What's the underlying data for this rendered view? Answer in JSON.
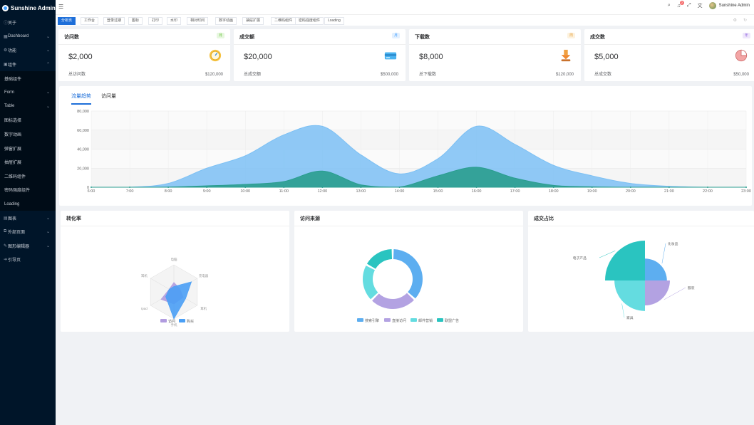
{
  "app": {
    "title": "Sunshine Admin"
  },
  "sidebar": {
    "items": [
      {
        "label": "关于",
        "icon": "info-icon",
        "arrow": ""
      },
      {
        "label": "Dashboard",
        "icon": "dashboard-icon",
        "arrow": "⌄"
      },
      {
        "label": "功能",
        "icon": "function-icon",
        "arrow": "⌄"
      },
      {
        "label": "组件",
        "icon": "component-icon",
        "arrow": "⌃"
      },
      {
        "label": "基础组件",
        "icon": "",
        "arrow": ""
      },
      {
        "label": "Form",
        "icon": "",
        "arrow": "⌄"
      },
      {
        "label": "Table",
        "icon": "",
        "arrow": "⌄"
      },
      {
        "label": "图标选择",
        "icon": "",
        "arrow": ""
      },
      {
        "label": "数字动画",
        "icon": "",
        "arrow": ""
      },
      {
        "label": "弹窗扩展",
        "icon": "",
        "arrow": ""
      },
      {
        "label": "抽屉扩展",
        "icon": "",
        "arrow": ""
      },
      {
        "label": "二维码组件",
        "icon": "",
        "arrow": ""
      },
      {
        "label": "密码强度组件",
        "icon": "",
        "arrow": ""
      },
      {
        "label": "Loading",
        "icon": "",
        "arrow": ""
      },
      {
        "label": "图表",
        "icon": "chart-icon",
        "arrow": "⌄"
      },
      {
        "label": "外部页面",
        "icon": "link-icon",
        "arrow": "⌄"
      },
      {
        "label": "图形编辑器",
        "icon": "editor-icon",
        "arrow": "⌄"
      },
      {
        "label": "引导页",
        "icon": "guide-icon",
        "arrow": ""
      }
    ]
  },
  "header": {
    "user_name": "Sunshine Admin",
    "notify_count": "2"
  },
  "tabs": [
    "分析页",
    "工作台",
    "登录过期",
    "图标",
    "打印",
    "水印",
    "相对时间",
    "数字动画",
    "抽屉扩展",
    "二维码组件",
    "密码强度组件",
    "Loading"
  ],
  "stats": [
    {
      "title": "访问数",
      "tag": "月",
      "tag_color": "#67c23a",
      "tag_bg": "#e7f7df",
      "value": "$2,000",
      "foot_label": "总访问数",
      "foot_value": "$120,000",
      "icon": "clock-icon"
    },
    {
      "title": "成交额",
      "tag": "月",
      "tag_color": "#409eff",
      "tag_bg": "#e3f0fe",
      "value": "$20,000",
      "foot_label": "总成交额",
      "foot_value": "$500,000",
      "icon": "credit-card-icon"
    },
    {
      "title": "下载数",
      "tag": "周",
      "tag_color": "#e6a23c",
      "tag_bg": "#fdf2df",
      "value": "$8,000",
      "foot_label": "总下载数",
      "foot_value": "$120,000",
      "icon": "download-icon"
    },
    {
      "title": "成交数",
      "tag": "年",
      "tag_color": "#9064e0",
      "tag_bg": "#efe7fb",
      "value": "$5,000",
      "foot_label": "总成交数",
      "foot_value": "$50,000",
      "icon": "pie-chart-icon"
    }
  ],
  "trend": {
    "tabs": [
      "流量趋势",
      "访问量"
    ],
    "active_tab": 0
  },
  "panels": {
    "conversion_title": "转化率",
    "source_title": "访问来源",
    "share_title": "成交占比"
  },
  "chart_data": [
    {
      "type": "area",
      "x": [
        "6:00",
        "7:00",
        "8:00",
        "9:00",
        "10:00",
        "11:00",
        "12:00",
        "13:00",
        "14:00",
        "15:00",
        "16:00",
        "17:00",
        "18:00",
        "19:00",
        "20:00",
        "21:00",
        "22:00",
        "23:00"
      ],
      "yticks": [
        "0",
        "20,000",
        "40,000",
        "60,000",
        "80,000"
      ],
      "ylim": [
        0,
        80000
      ],
      "series": [
        {
          "values": [
            0,
            100,
            4000,
            20000,
            33000,
            55000,
            64000,
            34000,
            14000,
            30000,
            64000,
            45000,
            23000,
            12000,
            4000,
            1000,
            0,
            0
          ],
          "color": "#7cc0f4"
        },
        {
          "values": [
            0,
            0,
            200,
            1500,
            3000,
            6000,
            17000,
            2500,
            300,
            12000,
            21000,
            9500,
            2000,
            500,
            0,
            0,
            0,
            0
          ],
          "color": "#2a9d8f"
        }
      ],
      "grid": true
    },
    {
      "type": "radar",
      "indicators": [
        "电脑",
        "充电器",
        "耳机",
        "手机",
        "Ipad",
        "耳机"
      ],
      "max": 100,
      "series": [
        {
          "name": "访问",
          "values": [
            35,
            25,
            40,
            45,
            55,
            20
          ],
          "color": "#b19cdf"
        },
        {
          "name": "购买",
          "values": [
            20,
            75,
            50,
            100,
            35,
            20
          ],
          "color": "#4a9ff5"
        }
      ]
    },
    {
      "type": "pie",
      "variant": "donut",
      "categories": [
        "搜索引擎",
        "直接访问",
        "邮件营销",
        "联盟广告"
      ],
      "values": [
        1048,
        735,
        580,
        484
      ],
      "colors": [
        "#5daef0",
        "#b3a2e2",
        "#64dce0",
        "#2ac4c0"
      ]
    },
    {
      "type": "pie",
      "variant": "rose",
      "categories": [
        "化妆品",
        "服装",
        "家具",
        "电子产品"
      ],
      "values": [
        320,
        400,
        550,
        800
      ],
      "colors": [
        "#5daef0",
        "#b3a2e2",
        "#64dce0",
        "#2ac4c0"
      ]
    }
  ]
}
